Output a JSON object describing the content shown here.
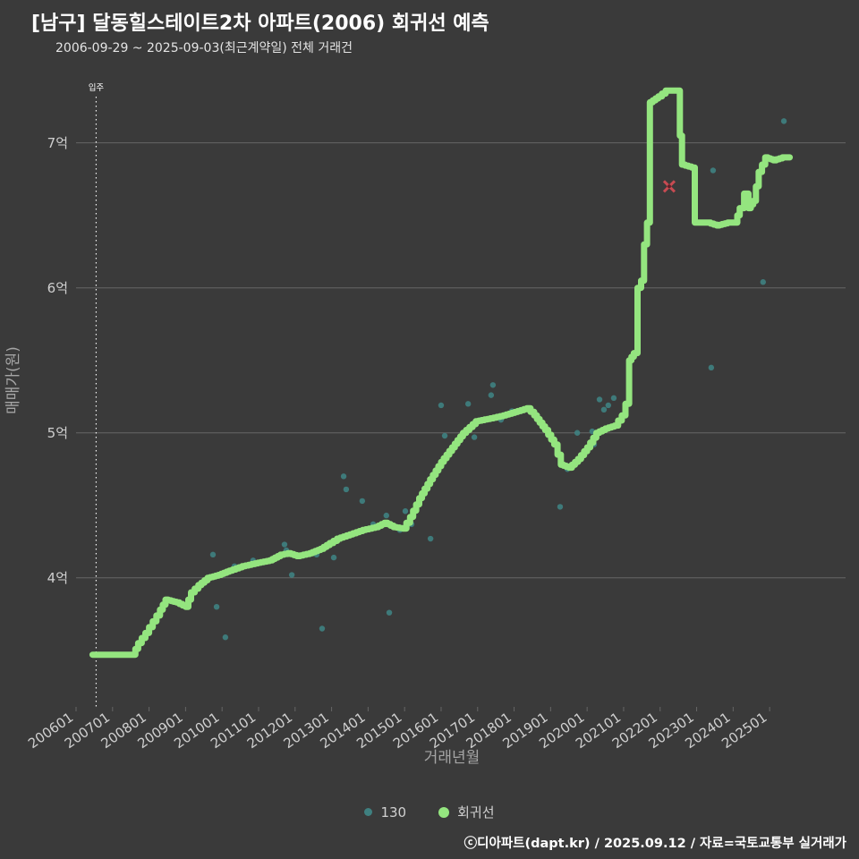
{
  "header": {
    "title": "[남구] 달동힐스테이트2차 아파트(2006) 회귀선 예측",
    "subtitle": "2006-09-29 ~ 2025-09-03(최근계약일) 전체 거래건"
  },
  "footer": {
    "credit": "ⓒ디아파트(dapt.kr) / 2025.09.12 / 자료=국토교통부 실거래가"
  },
  "legend": {
    "items": [
      {
        "label": "130",
        "color": "#3f8080"
      },
      {
        "label": "회귀선",
        "color": "#94e57f"
      }
    ]
  },
  "colors": {
    "background": "#3a3a3a",
    "grid": "#666666",
    "tick_label": "#cfcfcf",
    "axis_title": "#a5a5a5",
    "title": "#ffffff",
    "scatter": "#3f8080",
    "line": "#94e57f",
    "outlier": "#c84b52",
    "outlier_center": "#5e2027",
    "annotation": "#ffffff"
  },
  "chart_data": {
    "type": "scatter",
    "title": "[남구] 달동힐스테이트2차 아파트(2006) 회귀선 예측",
    "subtitle": "2006-09-29 ~ 2025-09-03(최근계약일) 전체 거래건",
    "xlabel": "거래년월",
    "ylabel": "매매가(원)",
    "unit": "억원",
    "grid": true,
    "legend_position": "bottom-center",
    "x_tick_labels": [
      "200601",
      "200701",
      "200801",
      "200901",
      "201001",
      "201101",
      "201201",
      "201301",
      "201401",
      "201501",
      "201601",
      "201701",
      "201801",
      "201901",
      "202001",
      "202101",
      "202201",
      "202301",
      "202401",
      "202501"
    ],
    "y_tick_labels": [
      "4억",
      "5억",
      "6억",
      "7억"
    ],
    "y_tick_values": [
      4,
      5,
      6,
      7
    ],
    "xlim": [
      2006.0,
      2027.08
    ],
    "ylim": [
      3.11,
      7.43
    ],
    "annotations": [
      {
        "label": "입주",
        "x": 2006.55,
        "type": "vline-dotted"
      }
    ],
    "series": [
      {
        "name": "130",
        "type": "scatter",
        "color": "#3f8080",
        "points": [
          [
            2009.75,
            4.16
          ],
          [
            2009.85,
            3.8
          ],
          [
            2010.09,
            3.59
          ],
          [
            2010.34,
            4.08
          ],
          [
            2010.85,
            4.12
          ],
          [
            2011.17,
            4.11
          ],
          [
            2011.71,
            4.23
          ],
          [
            2011.76,
            4.19
          ],
          [
            2011.91,
            4.02
          ],
          [
            2012.59,
            4.16
          ],
          [
            2012.74,
            3.65
          ],
          [
            2013.06,
            4.14
          ],
          [
            2013.33,
            4.7
          ],
          [
            2013.4,
            4.61
          ],
          [
            2013.84,
            4.53
          ],
          [
            2014.14,
            4.37
          ],
          [
            2014.5,
            4.43
          ],
          [
            2014.58,
            3.76
          ],
          [
            2014.87,
            4.33
          ],
          [
            2015.02,
            4.46
          ],
          [
            2015.19,
            4.37
          ],
          [
            2015.71,
            4.27
          ],
          [
            2016.0,
            5.19
          ],
          [
            2016.1,
            4.98
          ],
          [
            2016.74,
            5.2
          ],
          [
            2016.91,
            4.97
          ],
          [
            2017.1,
            5.09
          ],
          [
            2017.37,
            5.26
          ],
          [
            2017.42,
            5.33
          ],
          [
            2017.64,
            5.09
          ],
          [
            2017.94,
            5.15
          ],
          [
            2019.26,
            4.49
          ],
          [
            2019.46,
            4.75
          ],
          [
            2019.73,
            5.0
          ],
          [
            2019.97,
            4.87
          ],
          [
            2020.14,
            5.01
          ],
          [
            2020.19,
            4.92
          ],
          [
            2020.34,
            5.23
          ],
          [
            2020.46,
            5.16
          ],
          [
            2020.58,
            5.19
          ],
          [
            2020.73,
            5.24
          ],
          [
            2023.4,
            5.45
          ],
          [
            2023.45,
            6.81
          ],
          [
            2024.82,
            6.04
          ],
          [
            2025.39,
            7.15
          ]
        ]
      },
      {
        "name": "회귀선",
        "type": "line-step",
        "color": "#94e57f",
        "points": [
          [
            2006.45,
            3.47
          ],
          [
            2007.55,
            3.47
          ],
          [
            2007.7,
            3.55
          ],
          [
            2007.9,
            3.62
          ],
          [
            2008.1,
            3.7
          ],
          [
            2008.3,
            3.78
          ],
          [
            2008.45,
            3.85
          ],
          [
            2008.75,
            3.83
          ],
          [
            2009.0,
            3.8
          ],
          [
            2009.15,
            3.9
          ],
          [
            2009.35,
            3.95
          ],
          [
            2009.6,
            4.0
          ],
          [
            2009.9,
            4.02
          ],
          [
            2010.2,
            4.05
          ],
          [
            2010.55,
            4.08
          ],
          [
            2010.9,
            4.1
          ],
          [
            2011.3,
            4.12
          ],
          [
            2011.6,
            4.16
          ],
          [
            2011.8,
            4.17
          ],
          [
            2012.05,
            4.15
          ],
          [
            2012.4,
            4.17
          ],
          [
            2012.7,
            4.2
          ],
          [
            2012.95,
            4.24
          ],
          [
            2013.15,
            4.27
          ],
          [
            2013.5,
            4.3
          ],
          [
            2013.85,
            4.33
          ],
          [
            2014.2,
            4.35
          ],
          [
            2014.45,
            4.38
          ],
          [
            2014.7,
            4.35
          ],
          [
            2014.95,
            4.34
          ],
          [
            2015.15,
            4.42
          ],
          [
            2015.4,
            4.55
          ],
          [
            2015.7,
            4.68
          ],
          [
            2016.0,
            4.8
          ],
          [
            2016.3,
            4.9
          ],
          [
            2016.6,
            5.0
          ],
          [
            2016.95,
            5.08
          ],
          [
            2017.35,
            5.1
          ],
          [
            2017.7,
            5.12
          ],
          [
            2018.1,
            5.15
          ],
          [
            2018.35,
            5.17
          ],
          [
            2018.55,
            5.12
          ],
          [
            2018.85,
            5.02
          ],
          [
            2019.1,
            4.92
          ],
          [
            2019.28,
            4.78
          ],
          [
            2019.5,
            4.76
          ],
          [
            2019.75,
            4.82
          ],
          [
            2020.0,
            4.9
          ],
          [
            2020.25,
            5.0
          ],
          [
            2020.5,
            5.03
          ],
          [
            2020.75,
            5.05
          ],
          [
            2020.95,
            5.12
          ],
          [
            2021.05,
            5.2
          ],
          [
            2021.15,
            5.5
          ],
          [
            2021.28,
            5.55
          ],
          [
            2021.38,
            6.0
          ],
          [
            2021.48,
            6.05
          ],
          [
            2021.56,
            6.3
          ],
          [
            2021.64,
            6.45
          ],
          [
            2021.72,
            7.28
          ],
          [
            2021.95,
            7.32
          ],
          [
            2022.15,
            7.36
          ],
          [
            2022.48,
            7.36
          ],
          [
            2022.54,
            7.05
          ],
          [
            2022.6,
            6.85
          ],
          [
            2022.86,
            6.83
          ],
          [
            2022.95,
            6.45
          ],
          [
            2023.3,
            6.45
          ],
          [
            2023.55,
            6.43
          ],
          [
            2023.85,
            6.45
          ],
          [
            2024.05,
            6.45
          ],
          [
            2024.18,
            6.55
          ],
          [
            2024.3,
            6.65
          ],
          [
            2024.42,
            6.55
          ],
          [
            2024.55,
            6.6
          ],
          [
            2024.7,
            6.8
          ],
          [
            2024.88,
            6.9
          ],
          [
            2025.1,
            6.88
          ],
          [
            2025.35,
            6.9
          ],
          [
            2025.55,
            6.9
          ]
        ]
      },
      {
        "name": "outlier",
        "type": "x-marker",
        "color": "#c84b52",
        "points": [
          [
            2022.25,
            6.7
          ]
        ]
      }
    ]
  }
}
